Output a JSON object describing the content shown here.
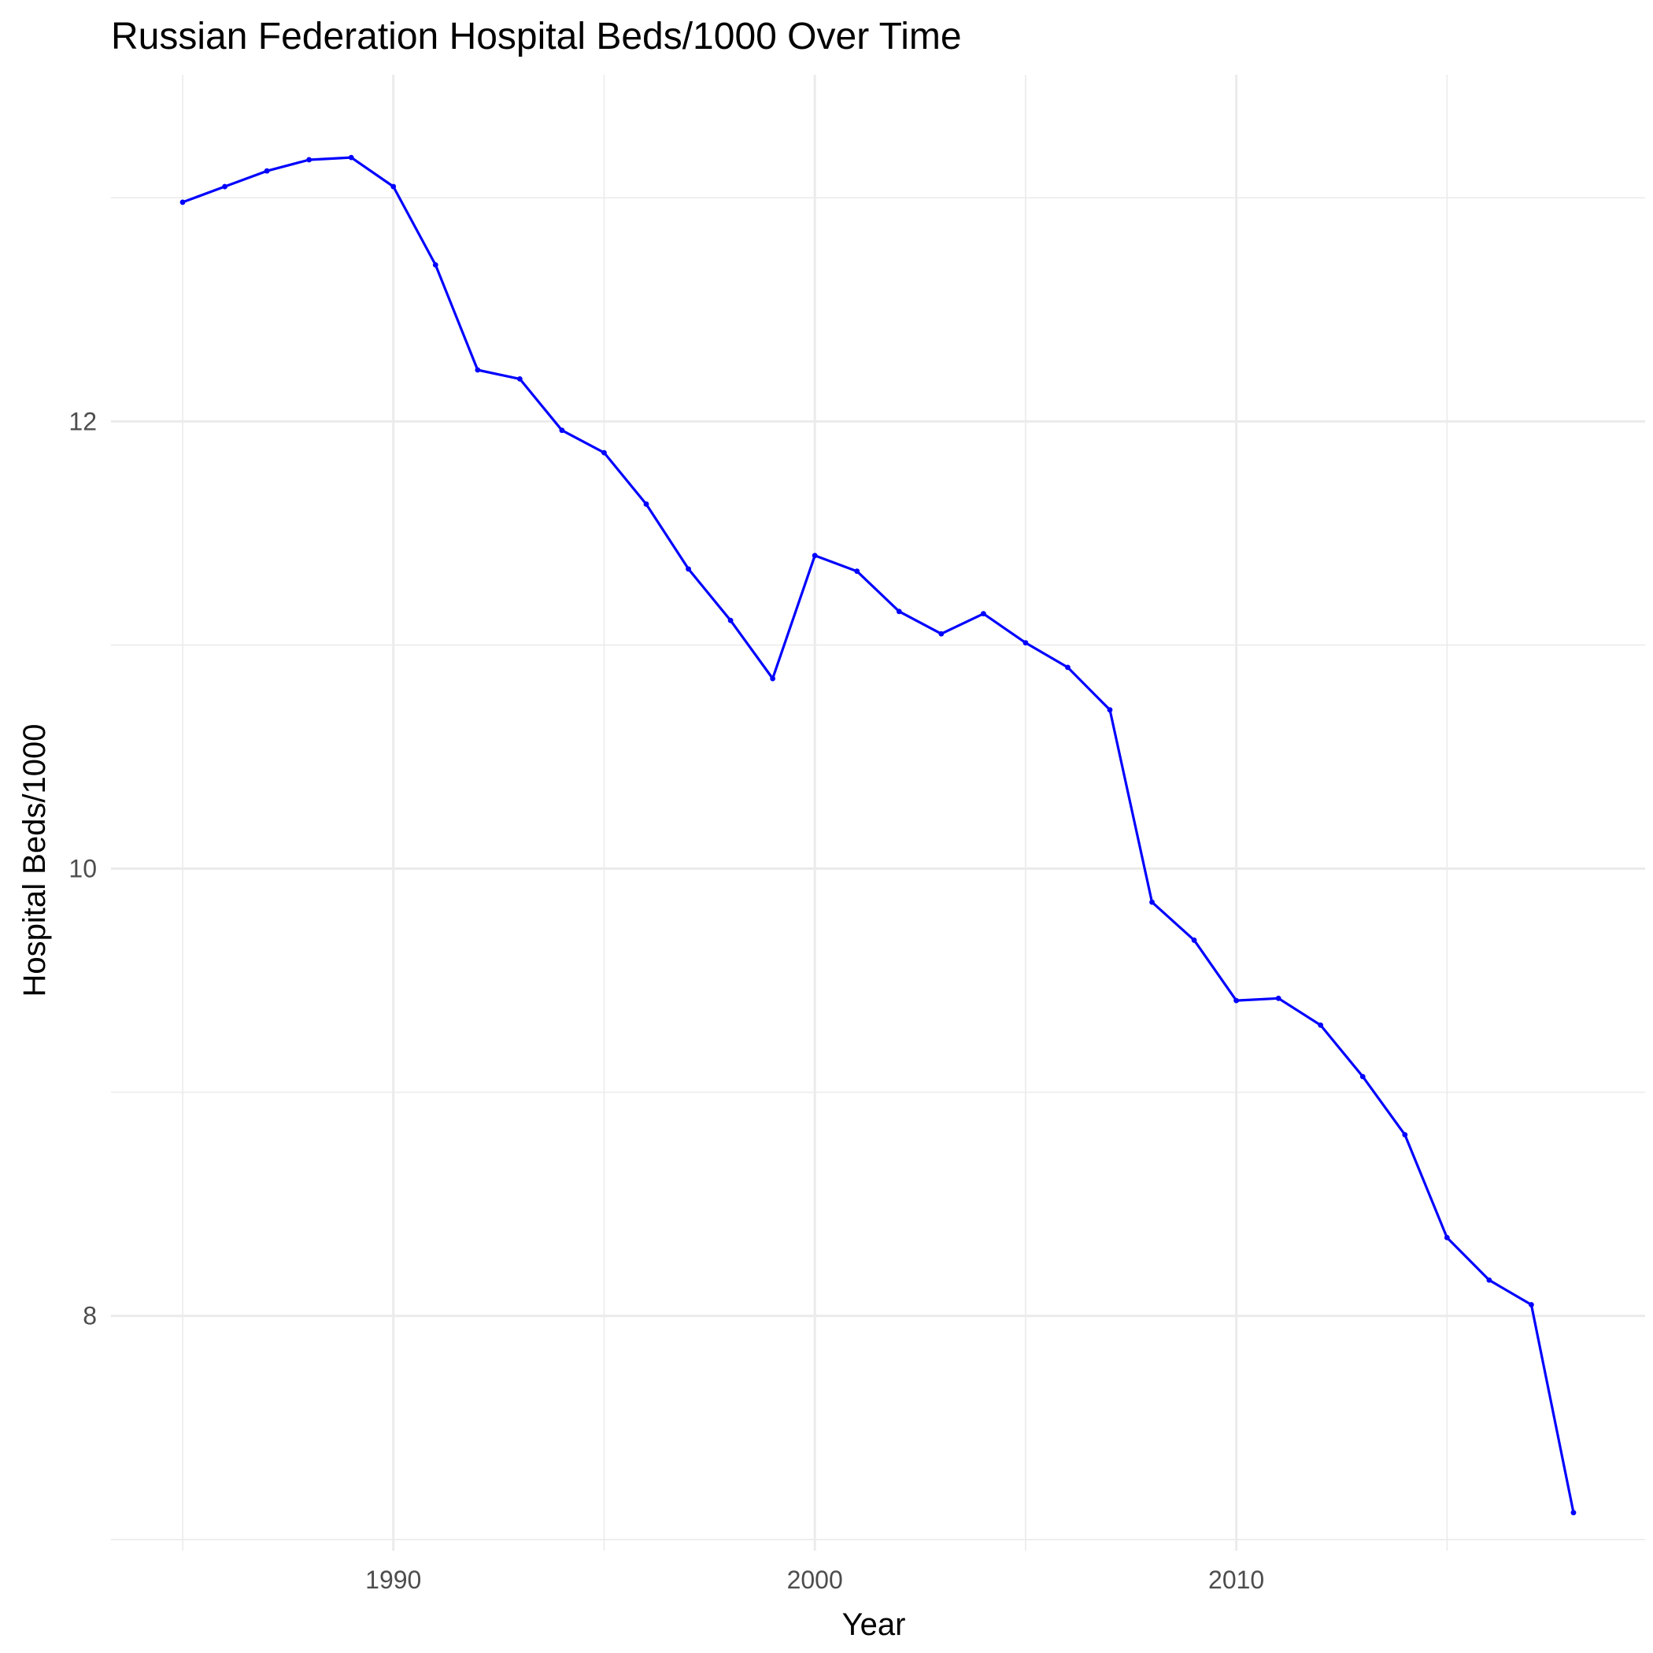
{
  "chart_data": {
    "type": "line",
    "title": "Russian Federation Hospital Beds/1000 Over Time",
    "xlabel": "Year",
    "ylabel": "Hospital Beds/1000",
    "xlim": [
      1983.3,
      2019.7
    ],
    "ylim": [
      6.95,
      13.55
    ],
    "x_ticks": [
      1990,
      2000,
      2010
    ],
    "x_minor_ticks": [
      1985,
      1995,
      2005,
      2015
    ],
    "y_ticks": [
      8,
      10,
      12
    ],
    "y_minor_ticks": [
      7,
      9,
      11,
      13
    ],
    "grid": true,
    "legend": "none",
    "line_color": "#0000ff",
    "series": [
      {
        "x": [
          1985,
          1986,
          1987,
          1988,
          1989,
          1990,
          1991,
          1992,
          1993,
          1994,
          1995,
          1996,
          1997,
          1998,
          1999,
          2000,
          2001,
          2002,
          2003,
          2004,
          2005,
          2006,
          2007,
          2008,
          2009,
          2010,
          2011,
          2012,
          2013,
          2014,
          2015,
          2016,
          2017,
          2018
        ],
        "y": [
          12.98,
          13.05,
          13.12,
          13.17,
          13.18,
          13.05,
          12.7,
          12.23,
          12.19,
          11.96,
          11.86,
          11.63,
          11.34,
          11.11,
          10.85,
          11.4,
          11.33,
          11.15,
          11.05,
          11.14,
          11.01,
          10.9,
          10.71,
          9.85,
          9.68,
          9.41,
          9.42,
          9.3,
          9.07,
          8.81,
          8.35,
          8.16,
          8.05,
          7.12
        ]
      }
    ]
  }
}
